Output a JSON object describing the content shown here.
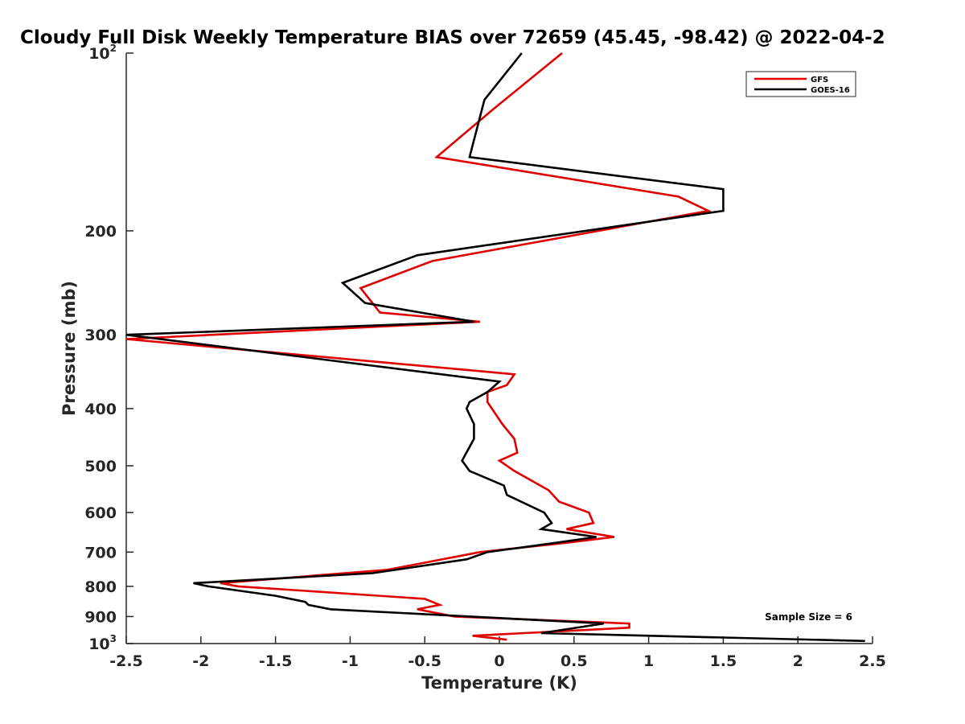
{
  "chart_data": {
    "type": "line",
    "title": "Cloudy Full Disk Weekly Temperature BIAS over 72659 (45.45, -98.42) @ 2022-04-2",
    "xlabel": "Temperature (K)",
    "ylabel": "Pressure (mb)",
    "xlim": [
      -2.5,
      2.5
    ],
    "ylim": [
      100,
      1000
    ],
    "yscale": "log",
    "y_reversed": true,
    "grid": false,
    "legend_position": "top-right",
    "x_ticks": [
      "-2.5",
      "-2",
      "-1.5",
      "-1",
      "-0.5",
      "0",
      "0.5",
      "1",
      "1.5",
      "2",
      "2.5"
    ],
    "x_tick_values": [
      -2.5,
      -2,
      -1.5,
      -1,
      -0.5,
      0,
      0.5,
      1,
      1.5,
      2,
      2.5
    ],
    "y_ticks": [
      {
        "value": 100,
        "base": "10",
        "exp": "2",
        "label": ""
      },
      {
        "value": 200,
        "base": "",
        "exp": "",
        "label": "200"
      },
      {
        "value": 300,
        "base": "",
        "exp": "",
        "label": "300"
      },
      {
        "value": 400,
        "base": "",
        "exp": "",
        "label": "400"
      },
      {
        "value": 500,
        "base": "",
        "exp": "",
        "label": "500"
      },
      {
        "value": 600,
        "base": "",
        "exp": "",
        "label": "600"
      },
      {
        "value": 700,
        "base": "",
        "exp": "",
        "label": "700"
      },
      {
        "value": 800,
        "base": "",
        "exp": "",
        "label": "800"
      },
      {
        "value": 900,
        "base": "",
        "exp": "",
        "label": "900"
      },
      {
        "value": 1000,
        "base": "10",
        "exp": "3",
        "label": ""
      }
    ],
    "annotation": "Sample Size = 6",
    "series": [
      {
        "name": "GFS",
        "color": "#e00000",
        "points": [
          [
            0.42,
            100
          ],
          [
            -0.05,
            125
          ],
          [
            -0.42,
            150
          ],
          [
            1.2,
            175
          ],
          [
            1.4,
            185
          ],
          [
            -0.45,
            225
          ],
          [
            -0.93,
            250
          ],
          [
            -0.8,
            275
          ],
          [
            -0.13,
            285
          ],
          [
            -2.5,
            305
          ],
          [
            0.1,
            350
          ],
          [
            0.05,
            365
          ],
          [
            -0.08,
            375
          ],
          [
            -0.08,
            390
          ],
          [
            0.02,
            425
          ],
          [
            0.1,
            450
          ],
          [
            0.12,
            475
          ],
          [
            0.0,
            490
          ],
          [
            0.1,
            510
          ],
          [
            0.33,
            550
          ],
          [
            0.4,
            575
          ],
          [
            0.6,
            600
          ],
          [
            0.63,
            625
          ],
          [
            0.45,
            640
          ],
          [
            0.77,
            660
          ],
          [
            0.45,
            675
          ],
          [
            -0.13,
            700
          ],
          [
            -0.75,
            750
          ],
          [
            -1.87,
            790
          ],
          [
            -1.75,
            800
          ],
          [
            -0.5,
            840
          ],
          [
            -0.4,
            860
          ],
          [
            -0.55,
            875
          ],
          [
            -0.3,
            900
          ],
          [
            0.87,
            925
          ],
          [
            0.87,
            940
          ],
          [
            -0.18,
            970
          ],
          [
            0.05,
            985
          ]
        ]
      },
      {
        "name": "GOES-16",
        "color": "#000000",
        "points": [
          [
            0.15,
            100
          ],
          [
            -0.1,
            120
          ],
          [
            -0.2,
            150
          ],
          [
            1.5,
            170
          ],
          [
            1.5,
            185
          ],
          [
            -0.55,
            220
          ],
          [
            -1.05,
            245
          ],
          [
            -0.9,
            265
          ],
          [
            -0.17,
            285
          ],
          [
            -2.5,
            300
          ],
          [
            0.0,
            360
          ],
          [
            -0.08,
            375
          ],
          [
            -0.2,
            390
          ],
          [
            -0.22,
            400
          ],
          [
            -0.17,
            425
          ],
          [
            -0.17,
            450
          ],
          [
            -0.25,
            490
          ],
          [
            -0.2,
            510
          ],
          [
            0.03,
            540
          ],
          [
            0.05,
            560
          ],
          [
            0.3,
            600
          ],
          [
            0.35,
            625
          ],
          [
            0.28,
            640
          ],
          [
            0.65,
            660
          ],
          [
            0.38,
            675
          ],
          [
            -0.08,
            700
          ],
          [
            -0.22,
            720
          ],
          [
            -0.85,
            760
          ],
          [
            -2.05,
            790
          ],
          [
            -1.95,
            800
          ],
          [
            -1.5,
            830
          ],
          [
            -1.3,
            850
          ],
          [
            -1.28,
            860
          ],
          [
            -1.13,
            875
          ],
          [
            0.7,
            925
          ],
          [
            0.28,
            960
          ],
          [
            2.45,
            990
          ]
        ]
      }
    ]
  }
}
